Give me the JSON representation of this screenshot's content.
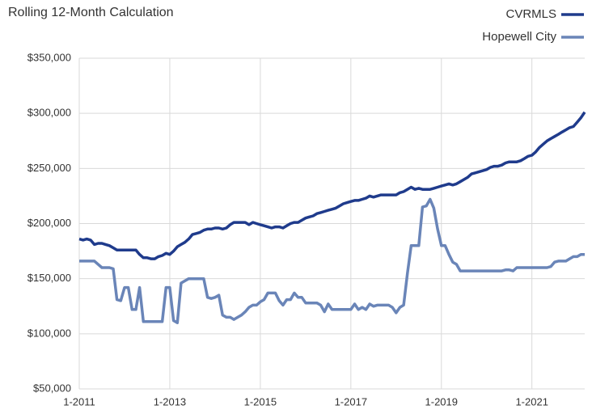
{
  "chart_data": {
    "type": "line",
    "title": "Rolling 12-Month Calculation",
    "categories": [
      "1-2011",
      null,
      null,
      null,
      null,
      null,
      null,
      null,
      null,
      null,
      null,
      null,
      null,
      null,
      null,
      null,
      null,
      null,
      null,
      null,
      null,
      null,
      null,
      null,
      "1-2013",
      null,
      null,
      null,
      null,
      null,
      null,
      null,
      null,
      null,
      null,
      null,
      null,
      null,
      null,
      null,
      null,
      null,
      null,
      null,
      null,
      null,
      null,
      null,
      "1-2015",
      null,
      null,
      null,
      null,
      null,
      null,
      null,
      null,
      null,
      null,
      null,
      null,
      null,
      null,
      null,
      null,
      null,
      null,
      null,
      null,
      null,
      null,
      null,
      "1-2017",
      null,
      null,
      null,
      null,
      null,
      null,
      null,
      null,
      null,
      null,
      null,
      null,
      null,
      null,
      null,
      null,
      null,
      null,
      null,
      null,
      null,
      null,
      null,
      "1-2019",
      null,
      null,
      null,
      null,
      null,
      null,
      null,
      null,
      null,
      null,
      null,
      null,
      null,
      null,
      null,
      null,
      null,
      null,
      null,
      null,
      null,
      null,
      null,
      "1-2021",
      null,
      null,
      null,
      null,
      null,
      null,
      null,
      null,
      null,
      null,
      null,
      null,
      null,
      null
    ],
    "series": [
      {
        "name": "CVRMLS",
        "color": "#1f3b8c",
        "values": [
          186000,
          185000,
          186000,
          185000,
          181000,
          182000,
          182000,
          181000,
          180000,
          178000,
          176000,
          176000,
          176000,
          176000,
          176000,
          176000,
          172000,
          169000,
          169000,
          168000,
          168000,
          170000,
          171000,
          173000,
          172000,
          175000,
          179000,
          181000,
          183000,
          186000,
          190000,
          191000,
          192000,
          194000,
          195000,
          195000,
          196000,
          196000,
          195000,
          196000,
          199000,
          201000,
          201000,
          201000,
          201000,
          199000,
          201000,
          200000,
          199000,
          198000,
          197000,
          196000,
          197000,
          197000,
          196000,
          198000,
          200000,
          201000,
          201000,
          203000,
          205000,
          206000,
          207000,
          209000,
          210000,
          211000,
          212000,
          213000,
          214000,
          216000,
          218000,
          219000,
          220000,
          221000,
          221000,
          222000,
          223000,
          225000,
          224000,
          225000,
          226000,
          226000,
          226000,
          226000,
          226000,
          228000,
          229000,
          231000,
          233000,
          231000,
          232000,
          231000,
          231000,
          231000,
          232000,
          233000,
          234000,
          235000,
          236000,
          235000,
          236000,
          238000,
          240000,
          242000,
          245000,
          246000,
          247000,
          248000,
          249000,
          251000,
          252000,
          252000,
          253000,
          255000,
          256000,
          256000,
          256000,
          257000,
          259000,
          261000,
          262000,
          265000,
          269000,
          272000,
          275000,
          277000,
          279000,
          281000,
          283000,
          285000,
          287000,
          288000,
          292000,
          296000,
          301000
        ]
      },
      {
        "name": "Hopewell City",
        "color": "#6a85b8",
        "values": [
          166000,
          166000,
          166000,
          166000,
          166000,
          163000,
          160000,
          160000,
          160000,
          159000,
          131000,
          130000,
          142000,
          142000,
          122000,
          122000,
          142000,
          111000,
          111000,
          111000,
          111000,
          111000,
          111000,
          142000,
          142000,
          112000,
          110000,
          146000,
          148000,
          150000,
          150000,
          150000,
          150000,
          150000,
          133000,
          132000,
          133000,
          135000,
          117000,
          115000,
          115000,
          113000,
          115000,
          117000,
          120000,
          124000,
          126000,
          126000,
          129000,
          131000,
          137000,
          137000,
          137000,
          130000,
          126000,
          131000,
          131000,
          137000,
          133000,
          133000,
          128000,
          128000,
          128000,
          128000,
          126000,
          120000,
          127000,
          122000,
          122000,
          122000,
          122000,
          122000,
          122000,
          127000,
          122000,
          124000,
          122000,
          127000,
          125000,
          126000,
          126000,
          126000,
          126000,
          124000,
          119000,
          124000,
          126000,
          155000,
          180000,
          180000,
          180000,
          215000,
          216000,
          222000,
          214000,
          195000,
          180000,
          180000,
          172000,
          165000,
          163000,
          157000,
          157000,
          157000,
          157000,
          157000,
          157000,
          157000,
          157000,
          157000,
          157000,
          157000,
          157000,
          158000,
          158000,
          157000,
          160000,
          160000,
          160000,
          160000,
          160000,
          160000,
          160000,
          160000,
          160000,
          161000,
          165000,
          166000,
          166000,
          166000,
          168000,
          170000,
          170000,
          172000,
          172000
        ]
      }
    ],
    "ylim": [
      50000,
      350000
    ],
    "yticks": [
      {
        "value": 50000,
        "label": "$50,000"
      },
      {
        "value": 100000,
        "label": "$100,000"
      },
      {
        "value": 150000,
        "label": "$150,000"
      },
      {
        "value": 200000,
        "label": "$200,000"
      },
      {
        "value": 250000,
        "label": "$250,000"
      },
      {
        "value": 300000,
        "label": "$300,000"
      },
      {
        "value": 350000,
        "label": "$350,000"
      }
    ],
    "grid": true,
    "legend": "top-right"
  }
}
